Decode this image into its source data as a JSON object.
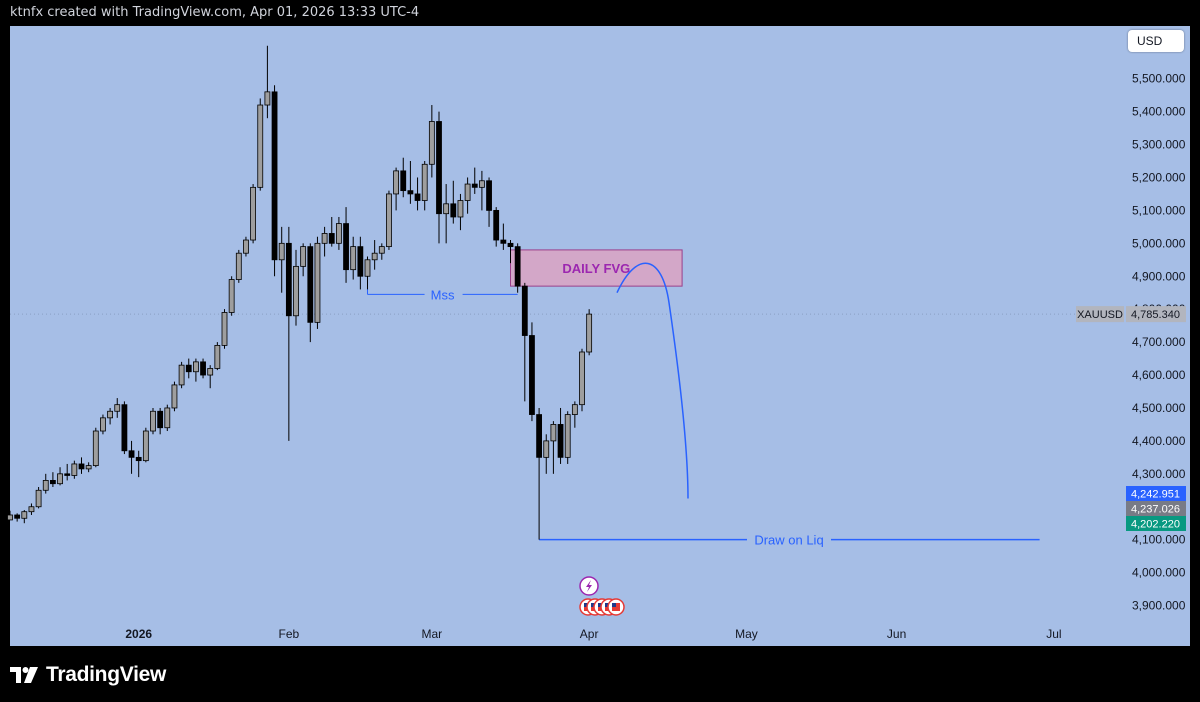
{
  "header": {
    "title": "ktnfx created with TradingView.com, Apr 01, 2026 13:33 UTC-4"
  },
  "toolbar": {
    "currency_label": "USD"
  },
  "footer": {
    "brand": "TradingView",
    "logo_icon": "tradingview-logo-icon"
  },
  "chart_data": {
    "type": "candlestick",
    "symbol": "XAUUSD",
    "last_price": "4,785.340",
    "ylim": [
      3850,
      5660
    ],
    "y_ticks": [
      "3,900.000",
      "4,000.000",
      "4,100.000",
      "4,200.000",
      "4,300.000",
      "4,400.000",
      "4,500.000",
      "4,600.000",
      "4,700.000",
      "4,800.000",
      "4,900.000",
      "5,000.000",
      "5,100.000",
      "5,200.000",
      "5,300.000",
      "5,400.000",
      "5,500.000"
    ],
    "y_tick_values": [
      3900,
      4000,
      4100,
      4200,
      4300,
      4400,
      4500,
      4600,
      4700,
      4800,
      4900,
      5000,
      5100,
      5200,
      5300,
      5400,
      5500
    ],
    "x_ticks": [
      {
        "label": "2026",
        "idx": 18
      },
      {
        "label": "Feb",
        "idx": 39
      },
      {
        "label": "Mar",
        "idx": 59
      },
      {
        "label": "Apr",
        "idx": 81
      },
      {
        "label": "May",
        "idx": 103
      },
      {
        "label": "Jun",
        "idx": 124
      },
      {
        "label": "Jul",
        "idx": 146
      }
    ],
    "price_badges": [
      {
        "value": "4,242.951",
        "color": "#2962ff"
      },
      {
        "value": "4,237.026",
        "color": "#787b86"
      },
      {
        "value": "4,202.220",
        "color": "#089981"
      }
    ],
    "annotations": {
      "fvg": {
        "label": "DAILY FVG",
        "top": 4980,
        "bottom": 4870,
        "from_idx": 70,
        "to_idx": 94
      },
      "mss": {
        "label": "Mss",
        "price": 4845,
        "from_idx": 50,
        "to_idx": 71
      },
      "liq": {
        "label": "Draw on Liq",
        "price": 4100,
        "from_idx": 74,
        "to_idx": 144
      },
      "projection": {
        "from_idx": 85,
        "to_idx": 95,
        "start": 4850,
        "peak": 4905,
        "end": 4225
      }
    },
    "candles": [
      [
        4160,
        4188,
        4170,
        4175
      ],
      [
        4175,
        4180,
        4155,
        4165
      ],
      [
        4165,
        4190,
        4150,
        4185
      ],
      [
        4185,
        4210,
        4175,
        4200
      ],
      [
        4200,
        4260,
        4195,
        4250
      ],
      [
        4250,
        4300,
        4240,
        4280
      ],
      [
        4280,
        4305,
        4260,
        4270
      ],
      [
        4270,
        4320,
        4265,
        4300
      ],
      [
        4300,
        4330,
        4280,
        4295
      ],
      [
        4295,
        4340,
        4285,
        4330
      ],
      [
        4330,
        4350,
        4300,
        4315
      ],
      [
        4315,
        4335,
        4305,
        4325
      ],
      [
        4325,
        4440,
        4320,
        4430
      ],
      [
        4430,
        4480,
        4420,
        4470
      ],
      [
        4470,
        4500,
        4450,
        4490
      ],
      [
        4490,
        4530,
        4470,
        4510
      ],
      [
        4510,
        4520,
        4360,
        4370
      ],
      [
        4370,
        4400,
        4300,
        4350
      ],
      [
        4350,
        4370,
        4290,
        4340
      ],
      [
        4340,
        4440,
        4335,
        4430
      ],
      [
        4430,
        4500,
        4420,
        4490
      ],
      [
        4490,
        4500,
        4420,
        4440
      ],
      [
        4440,
        4510,
        4430,
        4500
      ],
      [
        4500,
        4580,
        4490,
        4570
      ],
      [
        4570,
        4640,
        4560,
        4630
      ],
      [
        4630,
        4650,
        4590,
        4610
      ],
      [
        4610,
        4650,
        4580,
        4640
      ],
      [
        4640,
        4650,
        4590,
        4600
      ],
      [
        4600,
        4630,
        4560,
        4620
      ],
      [
        4620,
        4700,
        4615,
        4690
      ],
      [
        4690,
        4800,
        4680,
        4790
      ],
      [
        4790,
        4900,
        4780,
        4890
      ],
      [
        4890,
        4980,
        4880,
        4970
      ],
      [
        4970,
        5020,
        4960,
        5010
      ],
      [
        5010,
        5180,
        5000,
        5170
      ],
      [
        5170,
        5440,
        5160,
        5420
      ],
      [
        5420,
        5600,
        5380,
        5460
      ],
      [
        5460,
        5480,
        4900,
        4950
      ],
      [
        4950,
        5050,
        4850,
        5000
      ],
      [
        5000,
        5050,
        4400,
        4780
      ],
      [
        4780,
        4980,
        4750,
        4930
      ],
      [
        4930,
        5000,
        4900,
        4990
      ],
      [
        4990,
        5000,
        4700,
        4760
      ],
      [
        4760,
        5020,
        4740,
        5000
      ],
      [
        5000,
        5050,
        4960,
        5030
      ],
      [
        5030,
        5080,
        4990,
        5000
      ],
      [
        5000,
        5080,
        4980,
        5060
      ],
      [
        5060,
        5110,
        4880,
        4920
      ],
      [
        4920,
        5020,
        4890,
        4990
      ],
      [
        4990,
        5020,
        4860,
        4900
      ],
      [
        4900,
        4960,
        4860,
        4950
      ],
      [
        4950,
        5010,
        4920,
        4970
      ],
      [
        4970,
        5000,
        4950,
        4990
      ],
      [
        4990,
        5160,
        4980,
        5150
      ],
      [
        5150,
        5230,
        5100,
        5220
      ],
      [
        5220,
        5260,
        5140,
        5160
      ],
      [
        5160,
        5250,
        5120,
        5150
      ],
      [
        5150,
        5200,
        5100,
        5130
      ],
      [
        5130,
        5250,
        5100,
        5240
      ],
      [
        5240,
        5420,
        5200,
        5370
      ],
      [
        5370,
        5400,
        5000,
        5090
      ],
      [
        5090,
        5180,
        5000,
        5120
      ],
      [
        5120,
        5190,
        5060,
        5080
      ],
      [
        5080,
        5150,
        5040,
        5130
      ],
      [
        5130,
        5200,
        5090,
        5180
      ],
      [
        5180,
        5230,
        5150,
        5170
      ],
      [
        5170,
        5220,
        5100,
        5190
      ],
      [
        5190,
        5200,
        5050,
        5100
      ],
      [
        5100,
        5110,
        4990,
        5010
      ],
      [
        5010,
        5060,
        4980,
        5000
      ],
      [
        5000,
        5010,
        4940,
        4990
      ],
      [
        4990,
        5000,
        4850,
        4870
      ],
      [
        4870,
        4880,
        4520,
        4720
      ],
      [
        4720,
        4760,
        4460,
        4480
      ],
      [
        4480,
        4500,
        4100,
        4350
      ],
      [
        4350,
        4420,
        4300,
        4400
      ],
      [
        4400,
        4460,
        4300,
        4450
      ],
      [
        4450,
        4500,
        4330,
        4350
      ],
      [
        4350,
        4490,
        4330,
        4480
      ],
      [
        4480,
        4520,
        4440,
        4510
      ],
      [
        4510,
        4680,
        4490,
        4670
      ],
      [
        4670,
        4800,
        4660,
        4785
      ]
    ]
  }
}
